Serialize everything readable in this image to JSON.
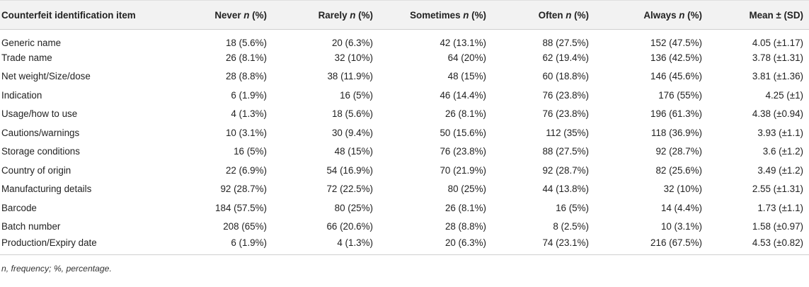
{
  "table": {
    "headers": [
      {
        "label": "Counterfeit identification item",
        "italic_n": ""
      },
      {
        "label": "Never ",
        "italic_n": "n",
        "suffix": " (%)"
      },
      {
        "label": "Rarely ",
        "italic_n": "n",
        "suffix": " (%)"
      },
      {
        "label": "Sometimes ",
        "italic_n": "n",
        "suffix": " (%)"
      },
      {
        "label": "Often ",
        "italic_n": "n",
        "suffix": " (%)"
      },
      {
        "label": "Always ",
        "italic_n": "n",
        "suffix": " (%)"
      },
      {
        "label": "Mean ± (SD)",
        "italic_n": ""
      }
    ],
    "rows": [
      [
        "Generic name",
        "18 (5.6%)",
        "20 (6.3%)",
        "42 (13.1%)",
        "88 (27.5%)",
        "152 (47.5%)",
        "4.05 (±1.17)"
      ],
      [
        "Trade name",
        "26 (8.1%)",
        "32 (10%)",
        "64 (20%)",
        "62 (19.4%)",
        "136 (42.5%)",
        "3.78 (±1.31)"
      ],
      [
        "Net weight/Size/dose",
        "28 (8.8%)",
        "38 (11.9%)",
        "48 (15%)",
        "60 (18.8%)",
        "146 (45.6%)",
        "3.81 (±1.36)"
      ],
      [
        "Indication",
        "6 (1.9%)",
        "16 (5%)",
        "46 (14.4%)",
        "76 (23.8%)",
        "176 (55%)",
        "4.25 (±1)"
      ],
      [
        "Usage/how to use",
        "4 (1.3%)",
        "18 (5.6%)",
        "26 (8.1%)",
        "76 (23.8%)",
        "196 (61.3%)",
        "4.38 (±0.94)"
      ],
      [
        "Cautions/warnings",
        "10 (3.1%)",
        "30 (9.4%)",
        "50 (15.6%)",
        "112 (35%)",
        "118 (36.9%)",
        "3.93 (±1.1)"
      ],
      [
        "Storage conditions",
        "16 (5%)",
        "48 (15%)",
        "76 (23.8%)",
        "88 (27.5%)",
        "92 (28.7%)",
        "3.6 (±1.2)"
      ],
      [
        "Country of origin",
        "22 (6.9%)",
        "54 (16.9%)",
        "70 (21.9%)",
        "92 (28.7%)",
        "82 (25.6%)",
        "3.49 (±1.2)"
      ],
      [
        "Manufacturing details",
        "92 (28.7%)",
        "72 (22.5%)",
        "80 (25%)",
        "44 (13.8%)",
        "32 (10%)",
        "2.55 (±1.31)"
      ],
      [
        "Barcode",
        "184 (57.5%)",
        "80 (25%)",
        "26 (8.1%)",
        "16 (5%)",
        "14 (4.4%)",
        "1.73 (±1.1)"
      ],
      [
        "Batch number",
        "208 (65%)",
        "66 (20.6%)",
        "28 (8.8%)",
        "8 (2.5%)",
        "10 (3.1%)",
        "1.58 (±0.97)"
      ],
      [
        "Production/Expiry date",
        "6 (1.9%)",
        "4 (1.3%)",
        "20 (6.3%)",
        "74 (23.1%)",
        "216 (67.5%)",
        "4.53 (±0.82)"
      ]
    ]
  },
  "footnote": "n, frequency; %, percentage."
}
